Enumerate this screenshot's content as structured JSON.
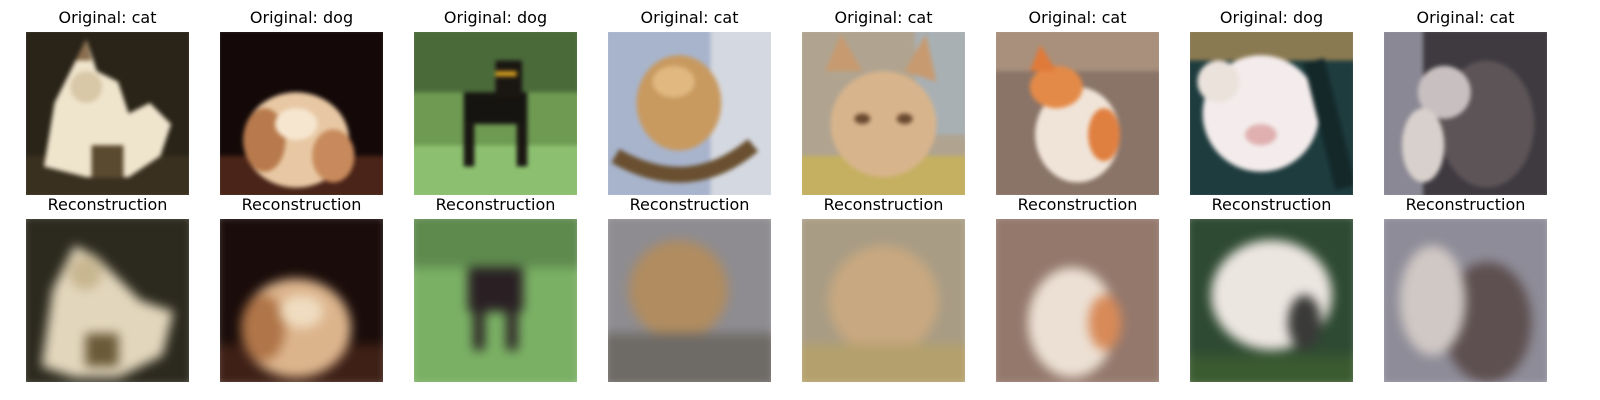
{
  "panels": [
    {
      "original_title": "Original: cat",
      "reconstruction_title": "Reconstruction"
    },
    {
      "original_title": "Original: dog",
      "reconstruction_title": "Reconstruction"
    },
    {
      "original_title": "Original: dog",
      "reconstruction_title": "Reconstruction"
    },
    {
      "original_title": "Original: cat",
      "reconstruction_title": "Reconstruction"
    },
    {
      "original_title": "Original: cat",
      "reconstruction_title": "Reconstruction"
    },
    {
      "original_title": "Original: cat",
      "reconstruction_title": "Reconstruction"
    },
    {
      "original_title": "Original: dog",
      "reconstruction_title": "Reconstruction"
    },
    {
      "original_title": "Original: cat",
      "reconstruction_title": "Reconstruction"
    }
  ]
}
